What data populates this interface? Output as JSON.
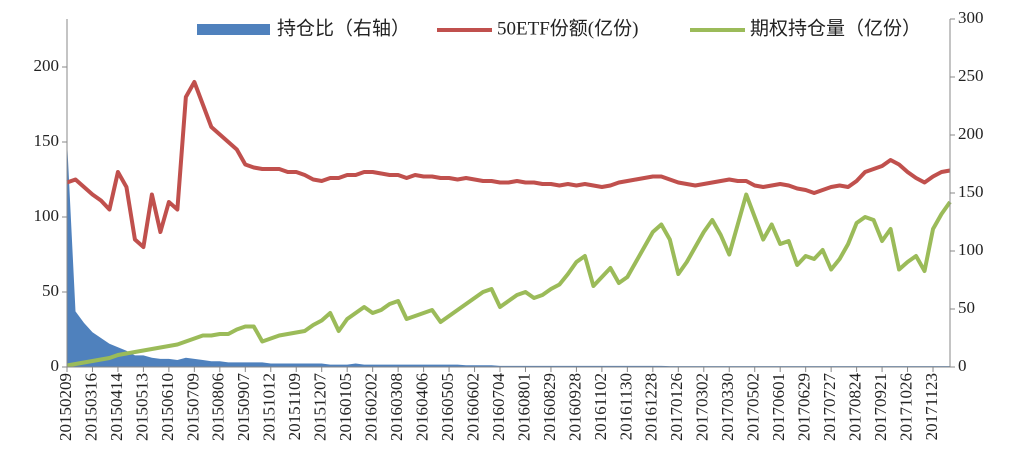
{
  "chart_data": {
    "type": "combo",
    "categories": [
      "20150209",
      null,
      null,
      "20150316",
      null,
      null,
      "20150414",
      null,
      null,
      "20150513",
      null,
      null,
      "20150610",
      null,
      null,
      "20150709",
      null,
      null,
      "20150806",
      null,
      null,
      "20150907",
      null,
      null,
      "20151012",
      null,
      null,
      "20151109",
      null,
      null,
      "20151207",
      null,
      null,
      "20160105",
      null,
      null,
      "20160202",
      null,
      null,
      "20160308",
      null,
      null,
      "20160406",
      null,
      null,
      "20160505",
      null,
      null,
      "20160602",
      null,
      null,
      "20160704",
      null,
      null,
      "20160801",
      null,
      null,
      "20160829",
      null,
      null,
      "20160928",
      null,
      null,
      "20161102",
      null,
      null,
      "20161130",
      null,
      null,
      "20161228",
      null,
      null,
      "20170126",
      null,
      null,
      "20170302",
      null,
      null,
      "20170330",
      null,
      null,
      "20170502",
      null,
      null,
      "20170601",
      null,
      null,
      "20170629",
      null,
      null,
      "20170727",
      null,
      null,
      "20170824",
      null,
      null,
      "20170921",
      null,
      null,
      "20171026",
      null,
      null,
      "20171123",
      null,
      null
    ],
    "series": [
      {
        "name": "持仓比（右轴）",
        "type": "area",
        "axis": "y2",
        "color": "#4f81bd",
        "values": [
          196,
          48,
          38,
          30,
          25,
          20,
          17,
          14,
          10,
          10,
          8,
          7,
          7,
          6,
          8,
          7,
          6,
          5,
          5,
          4,
          4,
          4,
          4,
          4,
          3,
          3,
          3,
          3,
          3,
          3,
          3,
          2,
          2,
          2,
          3,
          2,
          2,
          2,
          2,
          2,
          2,
          2,
          2,
          2,
          2,
          2,
          2,
          1.5,
          1.5,
          1.5,
          1.5,
          1,
          1,
          1,
          1,
          1,
          1,
          1,
          1,
          1,
          1,
          1,
          1,
          1,
          1,
          1,
          1,
          1,
          1,
          1,
          1,
          0.8,
          0.8,
          0.8,
          0.8,
          0.8,
          0.8,
          0.8,
          0.8,
          0.8,
          0.8,
          0.8,
          0.8,
          0.8,
          0.8,
          0.8,
          0.8,
          0.8,
          0.8,
          0.8,
          0.8,
          0.8,
          0.8,
          0.8,
          0.8,
          0.8,
          0.8,
          0.8,
          0.8,
          0.8,
          0.8,
          0.8,
          0.8,
          0.8,
          0.8
        ]
      },
      {
        "name": "50ETF份额(亿份)",
        "type": "line",
        "axis": "y",
        "color": "#c0504d",
        "values": [
          123,
          125,
          120,
          115,
          111,
          105,
          130,
          120,
          85,
          80,
          115,
          90,
          110,
          105,
          180,
          190,
          175,
          160,
          155,
          150,
          145,
          135,
          133,
          132,
          132,
          132,
          130,
          130,
          128,
          125,
          124,
          126,
          126,
          128,
          128,
          130,
          130,
          129,
          128,
          128,
          126,
          128,
          127,
          127,
          126,
          126,
          125,
          126,
          125,
          124,
          124,
          123,
          123,
          124,
          123,
          123,
          122,
          122,
          121,
          122,
          121,
          122,
          121,
          120,
          121,
          123,
          124,
          125,
          126,
          127,
          127,
          125,
          123,
          122,
          121,
          122,
          123,
          124,
          125,
          124,
          124,
          121,
          120,
          121,
          122,
          121,
          119,
          118,
          116,
          118,
          120,
          121,
          120,
          124,
          130,
          132,
          134,
          138,
          135,
          130,
          126,
          123,
          127,
          130,
          131
        ]
      },
      {
        "name": "期权持仓量（亿份）",
        "type": "line",
        "axis": "y",
        "color": "#9bbb59",
        "values": [
          1,
          2,
          3,
          4,
          5,
          6,
          8,
          9,
          10,
          11,
          12,
          13,
          14,
          15,
          17,
          19,
          21,
          21,
          22,
          22,
          25,
          27,
          27,
          17,
          19,
          21,
          22,
          23,
          24,
          28,
          31,
          36,
          24,
          32,
          36,
          40,
          36,
          38,
          42,
          44,
          32,
          34,
          36,
          38,
          30,
          34,
          38,
          42,
          46,
          50,
          52,
          40,
          44,
          48,
          50,
          46,
          48,
          52,
          55,
          62,
          70,
          74,
          54,
          60,
          66,
          56,
          60,
          70,
          80,
          90,
          95,
          85,
          62,
          70,
          80,
          90,
          98,
          88,
          75,
          95,
          115,
          100,
          85,
          95,
          82,
          84,
          68,
          74,
          72,
          78,
          65,
          72,
          82,
          96,
          100,
          98,
          84,
          92,
          65,
          70,
          74,
          64,
          92,
          102,
          110
        ]
      }
    ],
    "ylim": [
      0,
      232
    ],
    "yticks": [
      0,
      50,
      100,
      150,
      200
    ],
    "y2lim": [
      0,
      300
    ],
    "y2ticks": [
      0,
      50,
      100,
      150,
      200,
      250,
      300
    ],
    "legend": "top"
  }
}
